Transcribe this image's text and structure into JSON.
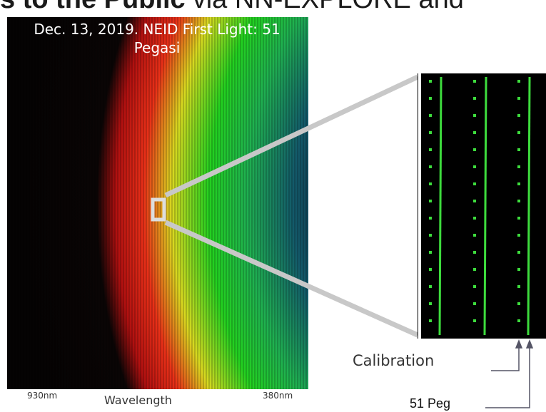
{
  "header": {
    "bold": "s to the Public",
    "rest": "via NN-EXPLORE and"
  },
  "image": {
    "caption": "Dec. 13, 2019. NEID First Light: 51 Pegasi",
    "left_label": "930nm",
    "axis_label": "Wavelength",
    "right_label": "380nm"
  },
  "zoom": {
    "calibration": "Calibration",
    "target": "51 Peg"
  }
}
